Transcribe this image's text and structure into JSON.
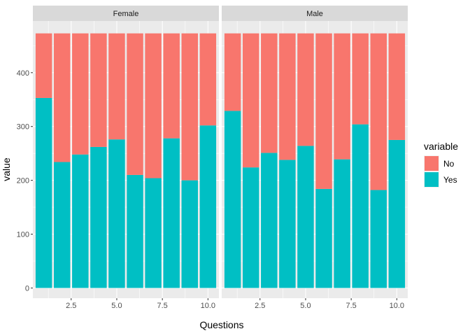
{
  "chart_data": {
    "type": "bar",
    "stacked": true,
    "facets": [
      {
        "label": "Female",
        "x": [
          1,
          2,
          3,
          4,
          5,
          6,
          7,
          8,
          9,
          10
        ],
        "series": [
          {
            "name": "No",
            "values": [
              120,
              239,
              225,
              211,
              197,
              263,
              269,
              195,
              273,
              171
            ]
          },
          {
            "name": "Yes",
            "values": [
              353,
              234,
              248,
              262,
              276,
              210,
              204,
              278,
              200,
              302
            ]
          }
        ]
      },
      {
        "label": "Male",
        "x": [
          1,
          2,
          3,
          4,
          5,
          6,
          7,
          8,
          9,
          10
        ],
        "series": [
          {
            "name": "No",
            "values": [
              144,
              249,
              222,
              235,
              209,
              289,
              234,
              169,
              291,
              198
            ]
          },
          {
            "name": "Yes",
            "values": [
              329,
              224,
              251,
              238,
              264,
              184,
              239,
              304,
              182,
              275
            ]
          }
        ]
      }
    ],
    "xlabel": "Questions",
    "ylabel": "value",
    "xlim": [
      0.4,
      10.6
    ],
    "ylim": [
      -19,
      496
    ],
    "x_ticks": [
      2.5,
      5.0,
      7.5,
      10.0
    ],
    "x_tick_labels": [
      "2.5",
      "5.0",
      "7.5",
      "10.0"
    ],
    "y_ticks": [
      0,
      100,
      200,
      300,
      400
    ],
    "y_tick_labels": [
      "0",
      "100",
      "200",
      "300",
      "400"
    ],
    "legend": {
      "title": "variable",
      "position": "right",
      "entries": [
        {
          "name": "No",
          "color": "#F8766D"
        },
        {
          "name": "Yes",
          "color": "#00BFC4"
        }
      ]
    },
    "colors": {
      "No": "#F8766D",
      "Yes": "#00BFC4"
    },
    "panel_background": "#EBEBEB",
    "strip_background": "#D9D9D9",
    "grid": true
  }
}
